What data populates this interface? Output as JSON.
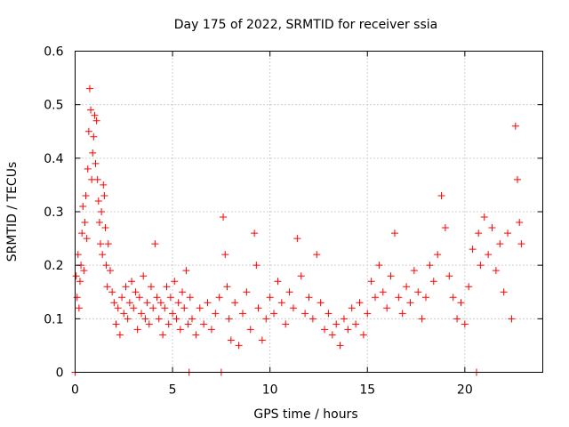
{
  "chart_data": {
    "type": "scatter",
    "title": "Day 175 of 2022, SRMTID for receiver ssia",
    "xlabel": "GPS time / hours",
    "ylabel": "SRMTID / TECUs",
    "xlim": [
      0,
      24
    ],
    "ylim": [
      0,
      0.6
    ],
    "xticks": [
      0,
      5,
      10,
      15,
      20
    ],
    "xtick_labels": [
      "0",
      "5",
      "10",
      "15",
      "20"
    ],
    "yticks": [
      0,
      0.1,
      0.2,
      0.3,
      0.4,
      0.5,
      0.6
    ],
    "ytick_labels": [
      "0",
      "0.1",
      "0.2",
      "0.3",
      "0.4",
      "0.5",
      "0.6"
    ],
    "grid": true,
    "legend": "none",
    "marker": "+",
    "color": "#ff0000",
    "series": [
      {
        "name": "SRMTID",
        "points": [
          [
            0.0,
            0.0
          ],
          [
            0.05,
            0.18
          ],
          [
            0.1,
            0.14
          ],
          [
            0.15,
            0.22
          ],
          [
            0.2,
            0.12
          ],
          [
            0.25,
            0.17
          ],
          [
            0.3,
            0.2
          ],
          [
            0.35,
            0.26
          ],
          [
            0.4,
            0.31
          ],
          [
            0.45,
            0.19
          ],
          [
            0.5,
            0.28
          ],
          [
            0.55,
            0.33
          ],
          [
            0.6,
            0.25
          ],
          [
            0.65,
            0.38
          ],
          [
            0.7,
            0.45
          ],
          [
            0.75,
            0.53
          ],
          [
            0.8,
            0.49
          ],
          [
            0.85,
            0.36
          ],
          [
            0.9,
            0.41
          ],
          [
            0.95,
            0.44
          ],
          [
            1.0,
            0.48
          ],
          [
            1.05,
            0.39
          ],
          [
            1.1,
            0.47
          ],
          [
            1.15,
            0.36
          ],
          [
            1.2,
            0.32
          ],
          [
            1.25,
            0.28
          ],
          [
            1.3,
            0.24
          ],
          [
            1.35,
            0.3
          ],
          [
            1.4,
            0.22
          ],
          [
            1.45,
            0.35
          ],
          [
            1.5,
            0.33
          ],
          [
            1.55,
            0.27
          ],
          [
            1.6,
            0.2
          ],
          [
            1.65,
            0.16
          ],
          [
            1.7,
            0.24
          ],
          [
            1.8,
            0.19
          ],
          [
            1.9,
            0.15
          ],
          [
            2.0,
            0.13
          ],
          [
            2.1,
            0.09
          ],
          [
            2.2,
            0.12
          ],
          [
            2.3,
            0.07
          ],
          [
            2.4,
            0.14
          ],
          [
            2.5,
            0.11
          ],
          [
            2.6,
            0.16
          ],
          [
            2.7,
            0.1
          ],
          [
            2.8,
            0.13
          ],
          [
            2.9,
            0.17
          ],
          [
            3.0,
            0.12
          ],
          [
            3.1,
            0.15
          ],
          [
            3.2,
            0.08
          ],
          [
            3.3,
            0.14
          ],
          [
            3.4,
            0.11
          ],
          [
            3.5,
            0.18
          ],
          [
            3.6,
            0.1
          ],
          [
            3.7,
            0.13
          ],
          [
            3.8,
            0.09
          ],
          [
            3.9,
            0.16
          ],
          [
            4.0,
            0.12
          ],
          [
            4.1,
            0.24
          ],
          [
            4.2,
            0.14
          ],
          [
            4.3,
            0.1
          ],
          [
            4.4,
            0.13
          ],
          [
            4.5,
            0.07
          ],
          [
            4.6,
            0.12
          ],
          [
            4.7,
            0.16
          ],
          [
            4.8,
            0.09
          ],
          [
            4.9,
            0.14
          ],
          [
            5.0,
            0.11
          ],
          [
            5.1,
            0.17
          ],
          [
            5.2,
            0.1
          ],
          [
            5.3,
            0.13
          ],
          [
            5.4,
            0.08
          ],
          [
            5.5,
            0.15
          ],
          [
            5.6,
            0.12
          ],
          [
            5.7,
            0.19
          ],
          [
            5.8,
            0.09
          ],
          [
            5.85,
            0.0
          ],
          [
            5.9,
            0.14
          ],
          [
            6.0,
            0.1
          ],
          [
            6.2,
            0.07
          ],
          [
            6.4,
            0.12
          ],
          [
            6.6,
            0.09
          ],
          [
            6.8,
            0.13
          ],
          [
            7.0,
            0.08
          ],
          [
            7.2,
            0.11
          ],
          [
            7.4,
            0.14
          ],
          [
            7.5,
            0.0
          ],
          [
            7.6,
            0.29
          ],
          [
            7.7,
            0.22
          ],
          [
            7.8,
            0.16
          ],
          [
            7.9,
            0.1
          ],
          [
            8.0,
            0.06
          ],
          [
            8.2,
            0.13
          ],
          [
            8.4,
            0.05
          ],
          [
            8.6,
            0.11
          ],
          [
            8.8,
            0.15
          ],
          [
            9.0,
            0.08
          ],
          [
            9.2,
            0.26
          ],
          [
            9.3,
            0.2
          ],
          [
            9.4,
            0.12
          ],
          [
            9.6,
            0.06
          ],
          [
            9.8,
            0.1
          ],
          [
            10.0,
            0.14
          ],
          [
            10.2,
            0.11
          ],
          [
            10.4,
            0.17
          ],
          [
            10.6,
            0.13
          ],
          [
            10.8,
            0.09
          ],
          [
            11.0,
            0.15
          ],
          [
            11.2,
            0.12
          ],
          [
            11.4,
            0.25
          ],
          [
            11.6,
            0.18
          ],
          [
            11.8,
            0.11
          ],
          [
            12.0,
            0.14
          ],
          [
            12.2,
            0.1
          ],
          [
            12.4,
            0.22
          ],
          [
            12.6,
            0.13
          ],
          [
            12.8,
            0.08
          ],
          [
            13.0,
            0.11
          ],
          [
            13.2,
            0.07
          ],
          [
            13.4,
            0.09
          ],
          [
            13.6,
            0.05
          ],
          [
            13.8,
            0.1
          ],
          [
            14.0,
            0.08
          ],
          [
            14.2,
            0.12
          ],
          [
            14.4,
            0.09
          ],
          [
            14.6,
            0.13
          ],
          [
            14.8,
            0.07
          ],
          [
            15.0,
            0.11
          ],
          [
            15.2,
            0.17
          ],
          [
            15.4,
            0.14
          ],
          [
            15.6,
            0.2
          ],
          [
            15.8,
            0.15
          ],
          [
            16.0,
            0.12
          ],
          [
            16.2,
            0.18
          ],
          [
            16.4,
            0.26
          ],
          [
            16.6,
            0.14
          ],
          [
            16.8,
            0.11
          ],
          [
            17.0,
            0.16
          ],
          [
            17.2,
            0.13
          ],
          [
            17.4,
            0.19
          ],
          [
            17.6,
            0.15
          ],
          [
            17.8,
            0.1
          ],
          [
            18.0,
            0.14
          ],
          [
            18.2,
            0.2
          ],
          [
            18.4,
            0.17
          ],
          [
            18.6,
            0.22
          ],
          [
            18.8,
            0.33
          ],
          [
            19.0,
            0.27
          ],
          [
            19.2,
            0.18
          ],
          [
            19.4,
            0.14
          ],
          [
            19.6,
            0.1
          ],
          [
            19.8,
            0.13
          ],
          [
            20.0,
            0.09
          ],
          [
            20.2,
            0.16
          ],
          [
            20.4,
            0.23
          ],
          [
            20.6,
            0.0
          ],
          [
            20.7,
            0.26
          ],
          [
            20.8,
            0.2
          ],
          [
            21.0,
            0.29
          ],
          [
            21.2,
            0.22
          ],
          [
            21.4,
            0.27
          ],
          [
            21.6,
            0.19
          ],
          [
            21.8,
            0.24
          ],
          [
            22.0,
            0.15
          ],
          [
            22.2,
            0.26
          ],
          [
            22.4,
            0.1
          ],
          [
            22.6,
            0.46
          ],
          [
            22.7,
            0.36
          ],
          [
            22.8,
            0.28
          ],
          [
            22.9,
            0.24
          ]
        ]
      }
    ]
  }
}
